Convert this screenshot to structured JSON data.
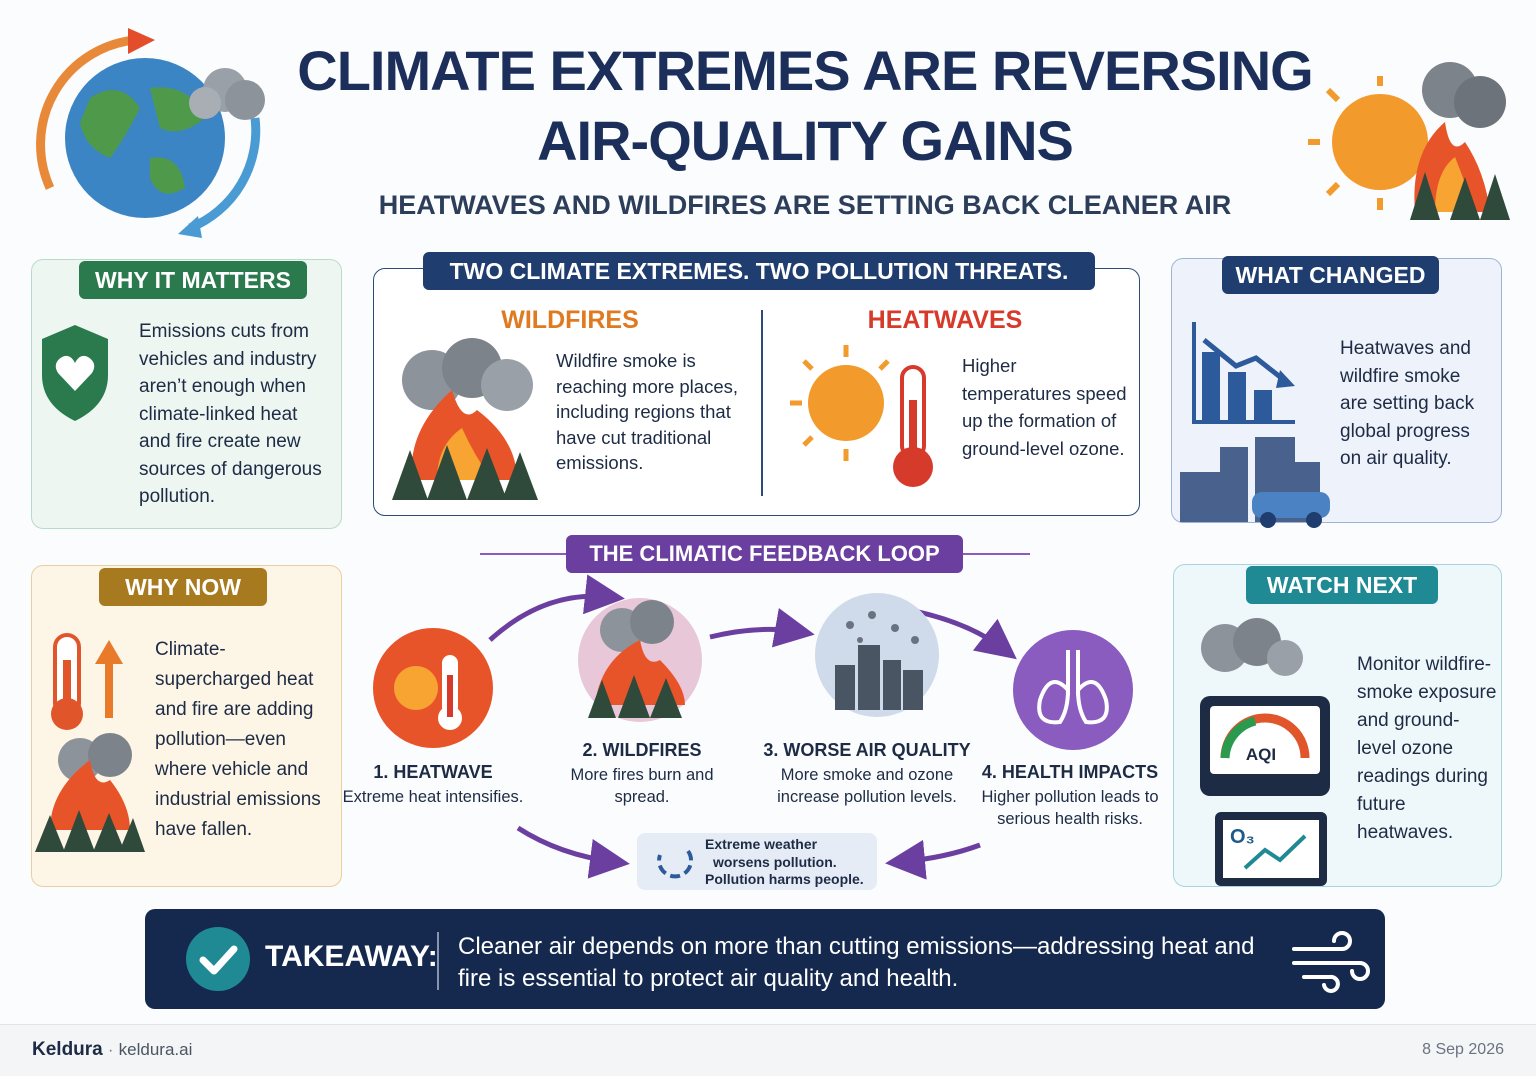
{
  "header": {
    "title_line1": "CLIMATE EXTREMES ARE REVERSING",
    "title_line2": "AIR-QUALITY GAINS",
    "subtitle": "HEATWAVES AND WILDFIRES ARE SETTING BACK CLEANER AIR"
  },
  "why_it_matters": {
    "heading": "WHY IT MATTERS",
    "text": "Emissions cuts from vehicles and industry aren’t enough when climate-linked heat and fire create new sources of dangerous pollution."
  },
  "two_extremes": {
    "heading": "TWO CLIMATE EXTREMES. TWO POLLUTION THREATS.",
    "wildfires": {
      "title": "WILDFIRES",
      "text": "Wildfire smoke is reaching more places, including regions that have cut traditional emissions."
    },
    "heatwaves": {
      "title": "HEATWAVES",
      "text": "Higher temperatures speed up the formation of ground-level ozone."
    }
  },
  "what_changed": {
    "heading": "WHAT CHANGED",
    "text": "Heatwaves and wildfire smoke are setting back global progress on air quality."
  },
  "why_now": {
    "heading": "WHY NOW",
    "text": "Climate-supercharged heat and fire are adding pollution—even where vehicle and industrial emissions have fallen."
  },
  "feedback_loop": {
    "heading": "THE CLIMATIC FEEDBACK LOOP",
    "steps": [
      {
        "label": "1. HEATWAVE",
        "text": "Extreme heat intensifies."
      },
      {
        "label": "2. WILDFIRES",
        "text": "More fires burn and spread."
      },
      {
        "label": "3. WORSE AIR QUALITY",
        "text": "More smoke and ozone increase pollution levels."
      },
      {
        "label": "4. HEALTH IMPACTS",
        "text": "Higher pollution leads to serious health risks."
      }
    ],
    "cycle_note": [
      "Extreme weather",
      "worsens pollution.",
      "Pollution harms people."
    ]
  },
  "watch_next": {
    "heading": "WATCH NEXT",
    "text": "Monitor wildfire-smoke exposure and ground-level ozone readings during future heatwaves.",
    "gauge_label": "AQI",
    "ozone_label": "O₃"
  },
  "takeaway": {
    "label": "TAKEAWAY:",
    "text": "Cleaner air depends on more than cutting emissions—addressing heat and fire is essential to protect air quality and health."
  },
  "footer": {
    "brand": "Keldura",
    "separator": "·",
    "site": "keldura.ai",
    "date": "8 Sep 2026"
  }
}
